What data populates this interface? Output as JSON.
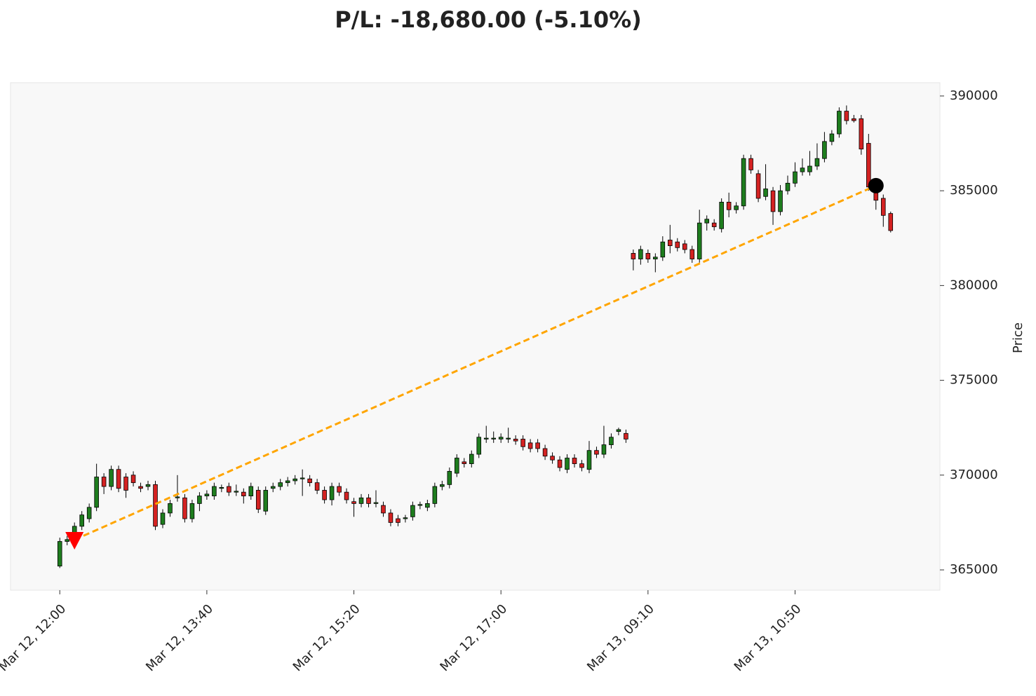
{
  "chart_data": {
    "type": "candlestick",
    "title": "P/L: -18,680.00 (-5.10%)",
    "ylabel": "Price",
    "categories": [
      "Mar 12, 12:00",
      null,
      null,
      null,
      null,
      null,
      null,
      null,
      null,
      null,
      null,
      null,
      null,
      null,
      null,
      null,
      null,
      null,
      null,
      null,
      "Mar 12, 13:40",
      null,
      null,
      null,
      null,
      null,
      null,
      null,
      null,
      null,
      null,
      null,
      null,
      null,
      null,
      null,
      null,
      null,
      null,
      null,
      "Mar 12, 15:20",
      null,
      null,
      null,
      null,
      null,
      null,
      null,
      null,
      null,
      null,
      null,
      null,
      null,
      null,
      null,
      null,
      null,
      null,
      null,
      "Mar 12, 17:00",
      null,
      null,
      null,
      null,
      null,
      null,
      null,
      null,
      null,
      null,
      null,
      null,
      null,
      null,
      null,
      null,
      null,
      null,
      null,
      "Mar 13, 09:10",
      null,
      null,
      null,
      null,
      null,
      null,
      null,
      null,
      null,
      null,
      null,
      null,
      null,
      null,
      null,
      null,
      null,
      null,
      null,
      "Mar 13, 10:50",
      null,
      null,
      null,
      null,
      null,
      null,
      null,
      null,
      null,
      null,
      null,
      null,
      null
    ],
    "open": [
      365200,
      366500,
      366700,
      367300,
      367700,
      368300,
      369900,
      369400,
      370300,
      369900,
      370000,
      369400,
      369400,
      369500,
      367400,
      368000,
      368800,
      368800,
      367700,
      368500,
      368900,
      368900,
      369300,
      369400,
      369100,
      369100,
      368900,
      369200,
      368100,
      369300,
      369400,
      369600,
      369700,
      369800,
      369800,
      369600,
      369200,
      368700,
      369400,
      369100,
      368600,
      368500,
      368800,
      368500,
      368400,
      368000,
      367700,
      367700,
      367800,
      368400,
      368300,
      368500,
      369400,
      369500,
      370100,
      370700,
      370600,
      371100,
      371900,
      371900,
      371900,
      371900,
      371900,
      371900,
      371700,
      371700,
      371400,
      371000,
      370800,
      370300,
      370900,
      370600,
      370300,
      371300,
      371100,
      371600,
      372300,
      372200,
      381700,
      381400,
      381700,
      381400,
      381500,
      382400,
      382300,
      382200,
      381900,
      381400,
      383300,
      383300,
      383000,
      384400,
      384000,
      384200,
      386700,
      385900,
      384700,
      385000,
      383900,
      385000,
      385400,
      386000,
      386000,
      386300,
      386700,
      387600,
      388000,
      389200,
      388800,
      388800,
      387500,
      385200,
      384600,
      383800
    ],
    "high": [
      366700,
      366800,
      367500,
      368100,
      368500,
      370600,
      370100,
      370500,
      370500,
      370100,
      370200,
      369600,
      369700,
      369700,
      368200,
      368700,
      370000,
      369000,
      368700,
      369100,
      369200,
      369600,
      369500,
      369600,
      369500,
      369300,
      369600,
      369400,
      369400,
      369600,
      369800,
      369900,
      370000,
      370300,
      370000,
      369800,
      369400,
      369600,
      369600,
      369300,
      368800,
      369000,
      369000,
      369200,
      368600,
      368200,
      367900,
      367900,
      368600,
      368600,
      368700,
      369600,
      369700,
      370400,
      371100,
      370900,
      371300,
      372200,
      372600,
      372300,
      372200,
      372500,
      372100,
      372100,
      371900,
      371900,
      371600,
      371200,
      371000,
      371100,
      371100,
      370800,
      371800,
      371500,
      372600,
      372200,
      372500,
      372400,
      381900,
      382100,
      381900,
      381700,
      382600,
      383200,
      382500,
      382400,
      382100,
      384000,
      383700,
      383500,
      384600,
      384900,
      384400,
      386900,
      386900,
      386100,
      386400,
      385200,
      385300,
      385800,
      386500,
      386700,
      387100,
      387500,
      388100,
      388200,
      389400,
      389500,
      389000,
      389000,
      388000,
      385600,
      384800,
      383900
    ],
    "low": [
      365100,
      366300,
      366500,
      367100,
      367500,
      368100,
      369000,
      369200,
      369100,
      368800,
      369400,
      369100,
      369200,
      367100,
      367200,
      367800,
      368600,
      367500,
      367500,
      368100,
      368700,
      368700,
      369100,
      368900,
      368900,
      368500,
      368700,
      368000,
      367900,
      369100,
      369200,
      369400,
      369500,
      368900,
      369400,
      369000,
      368500,
      368400,
      368900,
      368500,
      367800,
      368300,
      368300,
      368300,
      367800,
      367300,
      367300,
      367500,
      367600,
      368200,
      368100,
      368300,
      369200,
      369300,
      369900,
      370400,
      370400,
      370900,
      371700,
      371700,
      371700,
      371700,
      371600,
      371300,
      371200,
      371200,
      370800,
      370600,
      370200,
      370100,
      370400,
      370200,
      370100,
      370900,
      370900,
      371400,
      372100,
      371700,
      380800,
      381100,
      381200,
      380700,
      381300,
      381700,
      381800,
      381700,
      381200,
      381200,
      382900,
      382900,
      382800,
      383600,
      383800,
      384000,
      385900,
      384400,
      384500,
      383200,
      383700,
      384800,
      385200,
      385800,
      385800,
      386100,
      386500,
      387400,
      387800,
      388500,
      388600,
      386900,
      385000,
      384000,
      383100,
      382800
    ],
    "close": [
      366500,
      366600,
      367300,
      367900,
      368300,
      369900,
      369400,
      370300,
      369300,
      369200,
      369600,
      369300,
      369500,
      367300,
      368000,
      368500,
      368850,
      367700,
      368500,
      368900,
      369000,
      369400,
      369350,
      369100,
      369150,
      368900,
      369400,
      368200,
      369200,
      369400,
      369600,
      369700,
      369800,
      369850,
      369600,
      369200,
      368700,
      369400,
      369100,
      368700,
      368500,
      368800,
      368500,
      368550,
      368000,
      367500,
      367500,
      367750,
      368400,
      368450,
      368500,
      369400,
      369500,
      370200,
      370900,
      370600,
      371100,
      372000,
      371950,
      371950,
      372000,
      371950,
      371800,
      371500,
      371400,
      371400,
      371000,
      370800,
      370400,
      370900,
      370600,
      370400,
      371300,
      371100,
      371600,
      372000,
      372400,
      371900,
      381400,
      381900,
      381400,
      381500,
      382300,
      382100,
      382000,
      381900,
      381400,
      383300,
      383500,
      383100,
      384400,
      384000,
      384200,
      386700,
      386100,
      384600,
      385100,
      383900,
      385000,
      385400,
      386000,
      386200,
      386300,
      386700,
      387600,
      388000,
      389200,
      388700,
      388700,
      387200,
      385200,
      384500,
      383700,
      382900
    ],
    "up_color": "#1e7d1e",
    "down_color": "#d42222",
    "xlim": [
      -6.7,
      119.7
    ],
    "ylim": [
      363930,
      390700
    ],
    "yticks": [
      365000,
      370000,
      375000,
      380000,
      385000,
      390000
    ],
    "entry": {
      "x": 2,
      "price": 366590,
      "color": "#ff0000"
    },
    "exit": {
      "x": 111,
      "price": 385270,
      "color": "#000000"
    },
    "trade_line_color": "#ffa500"
  }
}
